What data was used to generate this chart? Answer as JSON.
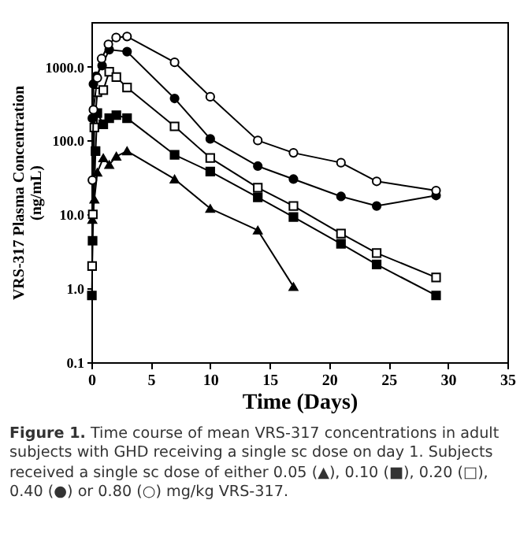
{
  "chart_data": {
    "type": "line",
    "xlabel": "Time (Days)",
    "ylabel": "VRS-317 Plasma Concentration\n(ng/mL)",
    "log": "y",
    "xlim": [
      0,
      35
    ],
    "xticks": [
      0,
      5,
      10,
      15,
      20,
      25,
      30,
      35
    ],
    "ylim": [
      0.1,
      4000
    ],
    "yticks": [
      {
        "value": 0.1,
        "label": "0.1"
      },
      {
        "value": 1,
        "label": "1.0"
      },
      {
        "value": 10,
        "label": "10.0"
      },
      {
        "value": 100,
        "label": "100.0"
      },
      {
        "value": 1000,
        "label": "1000.0"
      }
    ],
    "grid": false,
    "line_style": "solid",
    "series": [
      {
        "color": "#000000",
        "marker": "triangle",
        "x": [
          0.08,
          0.25,
          0.5,
          1,
          1.5,
          2.1,
          3,
          7,
          10,
          14,
          17
        ],
        "values": [
          8.5,
          16,
          37,
          58,
          47,
          61,
          72,
          30,
          12,
          6.1,
          1.05
        ]
      },
      {
        "color": "#000000",
        "marker": "square",
        "x": [
          0.04,
          0.1,
          0.35,
          0.5,
          1,
          1.5,
          2.1,
          3,
          7,
          10,
          14,
          17,
          21,
          24,
          29
        ],
        "values": [
          0.8,
          4.4,
          72,
          235,
          165,
          200,
          220,
          200,
          64,
          38,
          17,
          9.2,
          4.0,
          2.1,
          0.8
        ]
      },
      {
        "color": "#000000",
        "marker": "square-open",
        "x": [
          0.06,
          0.12,
          0.25,
          0.5,
          1,
          1.5,
          2.1,
          3,
          7,
          10,
          14,
          17,
          21,
          24,
          29
        ],
        "values": [
          2.0,
          10,
          150,
          450,
          480,
          850,
          720,
          520,
          155,
          58,
          23,
          13,
          5.5,
          3.0,
          1.4
        ]
      },
      {
        "color": "#000000",
        "marker": "circle",
        "x": [
          0.08,
          0.17,
          0.4,
          0.9,
          1.5,
          3,
          7,
          10,
          14,
          17,
          21,
          24,
          29
        ],
        "values": [
          200,
          580,
          740,
          1030,
          1690,
          1590,
          370,
          105,
          45,
          30,
          17.5,
          13,
          18
        ]
      },
      {
        "color": "#000000",
        "marker": "circle-open",
        "x": [
          0.08,
          0.17,
          0.5,
          0.86,
          1.43,
          2.08,
          3,
          7,
          10,
          14,
          17,
          21,
          24,
          29
        ],
        "values": [
          29,
          260,
          700,
          1280,
          2000,
          2470,
          2550,
          1140,
          390,
          100,
          68,
          50,
          28,
          21
        ]
      }
    ],
    "annotations": [
      "Figure 1. Time course of mean VRS-317 concentrations in adult subjects with GHD receiving a single sc dose on day 1. Subjects received a single sc dose of either 0.05 (▲), 0.10 (■), 0.20 (□), 0.40 (●) or 0.80 (○) mg/kg VRS-317."
    ]
  }
}
